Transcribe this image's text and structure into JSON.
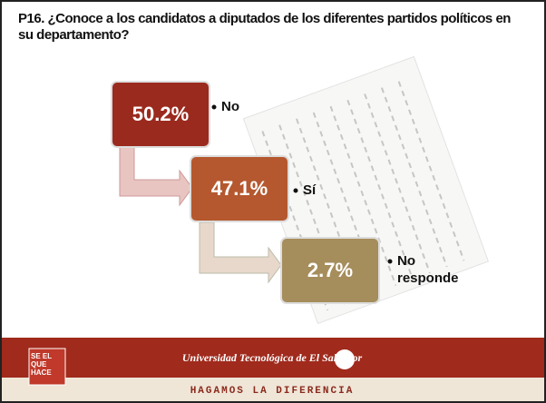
{
  "header": {
    "title": "P16. ¿Conoce a los candidatos a diputados de los diferentes partidos políticos en su departamento?"
  },
  "items": [
    {
      "value": "50.2%",
      "label": "No"
    },
    {
      "value": "47.1%",
      "label": "Sí"
    },
    {
      "value": "2.7%",
      "label": "No responde"
    }
  ],
  "footer": {
    "badge": "SE EL QUE HACE",
    "university": "Universidad Tecnológica de El Salvador",
    "slogan": "HAGAMOS LA DIFERENCIA"
  }
}
